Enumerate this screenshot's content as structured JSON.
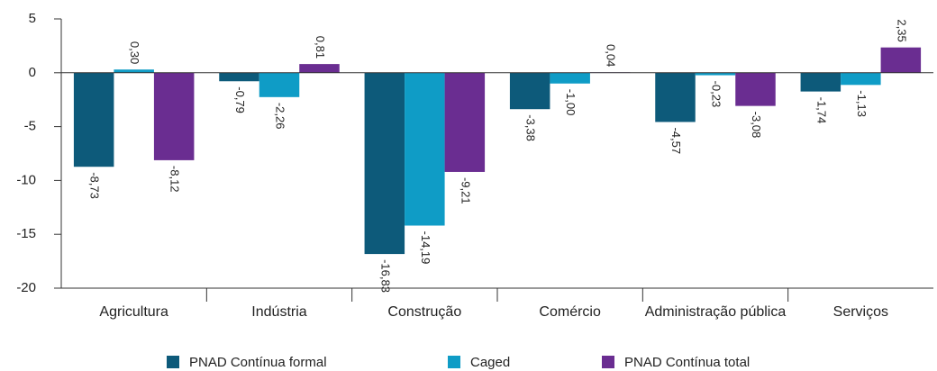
{
  "chart_data": {
    "type": "bar",
    "categories": [
      "Agricultura",
      "Indústria",
      "Construção",
      "Comércio",
      "Administração pública",
      "Serviços"
    ],
    "series": [
      {
        "name": "PNAD Contínua formal",
        "color": "#0d5a7a",
        "values": [
          -8.73,
          -0.79,
          -16.83,
          -3.38,
          -4.57,
          -1.74
        ],
        "value_labels": [
          "-8,73",
          "-0,79",
          "-16,83",
          "-3,38",
          "-4,57",
          "-1,74"
        ]
      },
      {
        "name": "Caged",
        "color": "#0f9cc6",
        "values": [
          0.3,
          -2.26,
          -14.19,
          -1.0,
          -0.23,
          -1.13
        ],
        "value_labels": [
          "0,30",
          "-2,26",
          "-14,19",
          "-1,00",
          "-0,23",
          "-1,13"
        ]
      },
      {
        "name": "PNAD Contínua total",
        "color": "#6a2d91",
        "values": [
          -8.12,
          0.81,
          -9.21,
          0.04,
          -3.08,
          2.35
        ],
        "value_labels": [
          "-8,12",
          "0,81",
          "-9,21",
          "0,04",
          "-3,08",
          "2,35"
        ]
      }
    ],
    "ylim": [
      -20,
      5
    ],
    "yticks": [
      5,
      0,
      -5,
      -10,
      -15,
      -20
    ]
  }
}
